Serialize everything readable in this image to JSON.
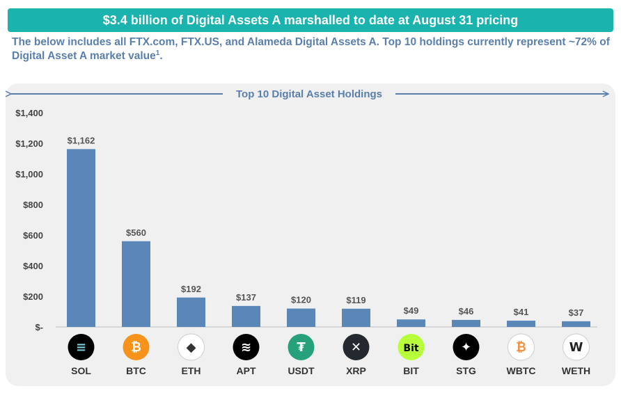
{
  "header": {
    "banner": "$3.4 billion of Digital Assets A marshalled to date at August 31 pricing",
    "subtitle_main": "The below includes all FTX.com, FTX.US, and Alameda Digital Assets A. Top 10 holdings currently represent ~72% of Digital Asset A market value",
    "subtitle_footnote": "1",
    "subtitle_end": "."
  },
  "chart_data": {
    "type": "bar",
    "title": "Top 10 Digital Asset Holdings",
    "categories": [
      "SOL",
      "BTC",
      "ETH",
      "APT",
      "USDT",
      "XRP",
      "BIT",
      "STG",
      "WBTC",
      "WETH"
    ],
    "values": [
      1162,
      560,
      192,
      137,
      120,
      119,
      49,
      46,
      41,
      37
    ],
    "value_labels": [
      "$1,162",
      "$560",
      "$192",
      "$137",
      "$120",
      "$119",
      "$49",
      "$46",
      "$41",
      "$37"
    ],
    "ylim": [
      0,
      1400
    ],
    "yticks": [
      0,
      200,
      400,
      600,
      800,
      1000,
      1200,
      1400
    ],
    "ytick_labels": [
      "$-",
      "$200",
      "$400",
      "$600",
      "$800",
      "$1,000",
      "$1,200",
      "$1,400"
    ],
    "xlabel": "",
    "ylabel": "",
    "grid": false,
    "bar_color": "#5a87b8",
    "icons": [
      {
        "name": "solana-icon",
        "bg": "#000000",
        "fg": "#7ad0e0",
        "text": "≡"
      },
      {
        "name": "bitcoin-icon",
        "bg": "#f7931a",
        "fg": "#ffffff",
        "text": "₿"
      },
      {
        "name": "ethereum-icon",
        "bg": "#ffffff",
        "fg": "#333333",
        "text": "◆"
      },
      {
        "name": "aptos-icon",
        "bg": "#000000",
        "fg": "#ffffff",
        "text": "≋"
      },
      {
        "name": "tether-icon",
        "bg": "#26a17b",
        "fg": "#ffffff",
        "text": "₮"
      },
      {
        "name": "xrp-icon",
        "bg": "#23292f",
        "fg": "#ffffff",
        "text": "✕"
      },
      {
        "name": "bitdao-icon",
        "bg": "#b6ff3a",
        "fg": "#000000",
        "text": "Bit"
      },
      {
        "name": "stargate-icon",
        "bg": "#000000",
        "fg": "#ffffff",
        "text": "✦"
      },
      {
        "name": "wrapped-bitcoin-icon",
        "bg": "#ffffff",
        "fg": "#f09242",
        "text": "₿"
      },
      {
        "name": "wrapped-ether-icon",
        "bg": "#ffffff",
        "fg": "#222222",
        "text": "W"
      }
    ]
  }
}
